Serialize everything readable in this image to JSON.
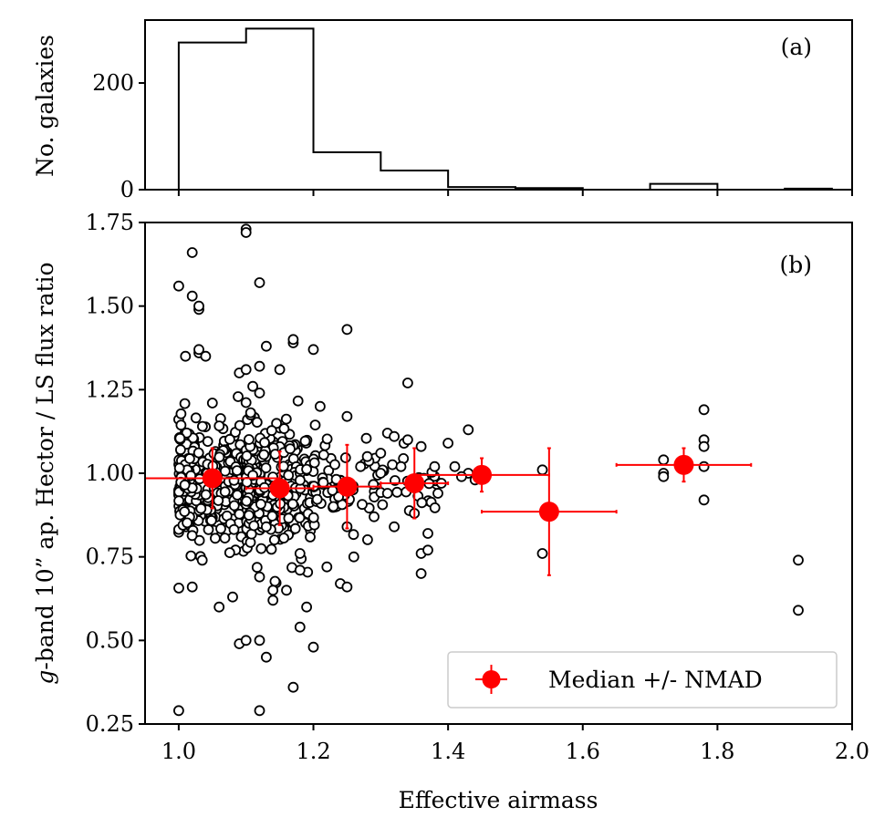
{
  "chart_data": [
    {
      "type": "histogram",
      "panel_label": "(a)",
      "xlabel": "",
      "ylabel": "No.  galaxies",
      "xlim": [
        0.95,
        2.0
      ],
      "ylim": [
        0,
        318
      ],
      "x_ticks": [
        1.0,
        1.2,
        1.4,
        1.6,
        1.8,
        2.0
      ],
      "y_ticks": [
        0,
        200
      ],
      "y_tick_labels": [
        "0",
        "200"
      ],
      "bins": [
        {
          "x0": 1.0,
          "x1": 1.1,
          "count": 276
        },
        {
          "x0": 1.1,
          "x1": 1.2,
          "count": 302
        },
        {
          "x0": 1.2,
          "x1": 1.3,
          "count": 70
        },
        {
          "x0": 1.3,
          "x1": 1.4,
          "count": 36
        },
        {
          "x0": 1.4,
          "x1": 1.5,
          "count": 5
        },
        {
          "x0": 1.5,
          "x1": 1.6,
          "count": 3
        },
        {
          "x0": 1.6,
          "x1": 1.7,
          "count": 0
        },
        {
          "x0": 1.7,
          "x1": 1.8,
          "count": 11
        },
        {
          "x0": 1.8,
          "x1": 1.9,
          "count": 0
        },
        {
          "x0": 1.9,
          "x1": 1.97,
          "count": 2
        }
      ],
      "grid": false
    },
    {
      "type": "scatter",
      "panel_label": "(b)",
      "xlabel": "Effective airmass",
      "ylabel_italic": "g",
      "ylabel_rest": "-band 10” ap. Hector / LS flux ratio",
      "xlim": [
        0.95,
        2.0
      ],
      "ylim": [
        0.25,
        1.75
      ],
      "x_ticks": [
        1.0,
        1.2,
        1.4,
        1.6,
        1.8,
        2.0
      ],
      "x_tick_labels": [
        "1.0",
        "1.2",
        "1.4",
        "1.6",
        "1.8",
        "2.0"
      ],
      "y_ticks": [
        0.25,
        0.5,
        0.75,
        1.0,
        1.25,
        1.5,
        1.75
      ],
      "y_tick_labels": [
        "0.25",
        "0.50",
        "0.75",
        "1.00",
        "1.25",
        "1.50",
        "1.75"
      ],
      "grid": false,
      "legend": {
        "label": "Median +/- NMAD",
        "placement": "lower-right"
      },
      "marker_colors": {
        "galaxy_edge": "#000000",
        "galaxy_fill": "#ffffff",
        "median": "#ff0000"
      },
      "outlier_points": [
        [
          1.0,
          0.29
        ],
        [
          1.12,
          0.29
        ],
        [
          1.17,
          0.36
        ],
        [
          1.2,
          0.48
        ],
        [
          1.09,
          0.49
        ],
        [
          1.13,
          0.45
        ],
        [
          1.1,
          0.5
        ],
        [
          1.12,
          0.5
        ],
        [
          1.06,
          0.6
        ],
        [
          1.08,
          0.63
        ],
        [
          1.14,
          0.62
        ],
        [
          1.19,
          0.6
        ],
        [
          1.18,
          0.54
        ],
        [
          1.24,
          0.67
        ],
        [
          1.25,
          0.66
        ],
        [
          1.02,
          0.66
        ],
        [
          1.01,
          1.35
        ],
        [
          1.0,
          1.56
        ],
        [
          1.02,
          1.66
        ],
        [
          1.02,
          1.53
        ],
        [
          1.03,
          1.49
        ],
        [
          1.03,
          1.5
        ],
        [
          1.03,
          1.36
        ],
        [
          1.04,
          1.35
        ],
        [
          1.03,
          1.37
        ],
        [
          1.12,
          1.57
        ],
        [
          1.1,
          1.73
        ],
        [
          1.1,
          1.72
        ],
        [
          1.13,
          1.38
        ],
        [
          1.17,
          1.39
        ],
        [
          1.17,
          1.4
        ],
        [
          1.2,
          1.37
        ],
        [
          1.09,
          1.3
        ],
        [
          1.1,
          1.31
        ],
        [
          1.12,
          1.32
        ],
        [
          1.15,
          1.31
        ],
        [
          1.25,
          1.43
        ],
        [
          1.34,
          1.27
        ],
        [
          1.05,
          1.21
        ],
        [
          1.11,
          1.26
        ],
        [
          1.12,
          1.24
        ],
        [
          1.43,
          1.13
        ],
        [
          1.25,
          1.17
        ],
        [
          1.36,
          1.08
        ],
        [
          1.4,
          1.09
        ],
        [
          1.43,
          1.0
        ],
        [
          1.42,
          0.99
        ],
        [
          1.44,
          0.98
        ],
        [
          1.54,
          1.01
        ],
        [
          1.54,
          0.76
        ],
        [
          1.36,
          0.7
        ],
        [
          1.36,
          0.76
        ],
        [
          1.37,
          0.77
        ],
        [
          1.37,
          0.82
        ],
        [
          1.25,
          0.84
        ],
        [
          1.29,
          0.87
        ],
        [
          1.32,
          0.84
        ],
        [
          1.35,
          0.88
        ],
        [
          1.72,
          1.04
        ],
        [
          1.72,
          1.0
        ],
        [
          1.72,
          0.99
        ],
        [
          1.78,
          1.19
        ],
        [
          1.78,
          1.1
        ],
        [
          1.78,
          1.08
        ],
        [
          1.78,
          1.02
        ],
        [
          1.78,
          0.92
        ],
        [
          1.92,
          0.74
        ],
        [
          1.92,
          0.59
        ],
        [
          1.12,
          0.69
        ],
        [
          1.16,
          0.65
        ],
        [
          1.14,
          0.65
        ],
        [
          1.18,
          0.71
        ],
        [
          1.13,
          0.84
        ],
        [
          1.18,
          0.76
        ],
        [
          1.22,
          0.72
        ],
        [
          1.27,
          1.02
        ],
        [
          1.28,
          1.05
        ],
        [
          1.3,
          1.06
        ],
        [
          1.31,
          1.12
        ],
        [
          1.32,
          1.11
        ],
        [
          1.34,
          1.1
        ],
        [
          1.3,
          1.0
        ],
        [
          1.31,
          0.94
        ],
        [
          1.33,
          1.02
        ],
        [
          1.38,
          1.02
        ],
        [
          1.39,
          0.97
        ],
        [
          1.41,
          1.02
        ],
        [
          1.26,
          0.75
        ],
        [
          1.21,
          1.2
        ]
      ],
      "cloud_regions": [
        {
          "x_range": [
            1.0,
            1.1
          ],
          "center": 0.97,
          "spread": 0.15,
          "count": 260
        },
        {
          "x_range": [
            1.1,
            1.2
          ],
          "center": 0.95,
          "spread": 0.16,
          "count": 290
        },
        {
          "x_range": [
            1.2,
            1.3
          ],
          "center": 0.96,
          "spread": 0.1,
          "count": 60
        },
        {
          "x_range": [
            1.3,
            1.4
          ],
          "center": 0.97,
          "spread": 0.08,
          "count": 26
        }
      ],
      "median_points": [
        {
          "x": 1.05,
          "y": 0.985,
          "xerr": 0.1,
          "yerr": 0.09
        },
        {
          "x": 1.15,
          "y": 0.955,
          "xerr": 0.05,
          "yerr": 0.11
        },
        {
          "x": 1.25,
          "y": 0.96,
          "xerr": 0.05,
          "yerr": 0.125
        },
        {
          "x": 1.35,
          "y": 0.97,
          "xerr": 0.05,
          "yerr": 0.105
        },
        {
          "x": 1.45,
          "y": 0.995,
          "xerr": 0.1,
          "yerr": 0.05
        },
        {
          "x": 1.55,
          "y": 0.885,
          "xerr": 0.1,
          "yerr": 0.19
        },
        {
          "x": 1.75,
          "y": 1.025,
          "xerr": 0.1,
          "yerr": 0.05
        }
      ]
    }
  ]
}
